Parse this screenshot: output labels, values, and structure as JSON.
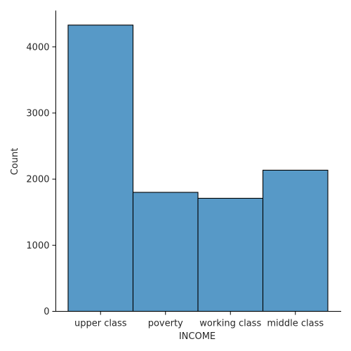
{
  "chart_data": {
    "type": "bar",
    "title": "",
    "xlabel": "INCOME",
    "ylabel": "Count",
    "categories": [
      "upper class",
      "poverty",
      "working class",
      "middle class"
    ],
    "values": [
      4330,
      1800,
      1710,
      2135
    ],
    "yticks": [
      0,
      1000,
      2000,
      3000,
      4000
    ],
    "ylim": [
      0,
      4550
    ],
    "bar_color": "#5799c7",
    "edge_color": "#000000",
    "grid": false,
    "legend": "none"
  }
}
